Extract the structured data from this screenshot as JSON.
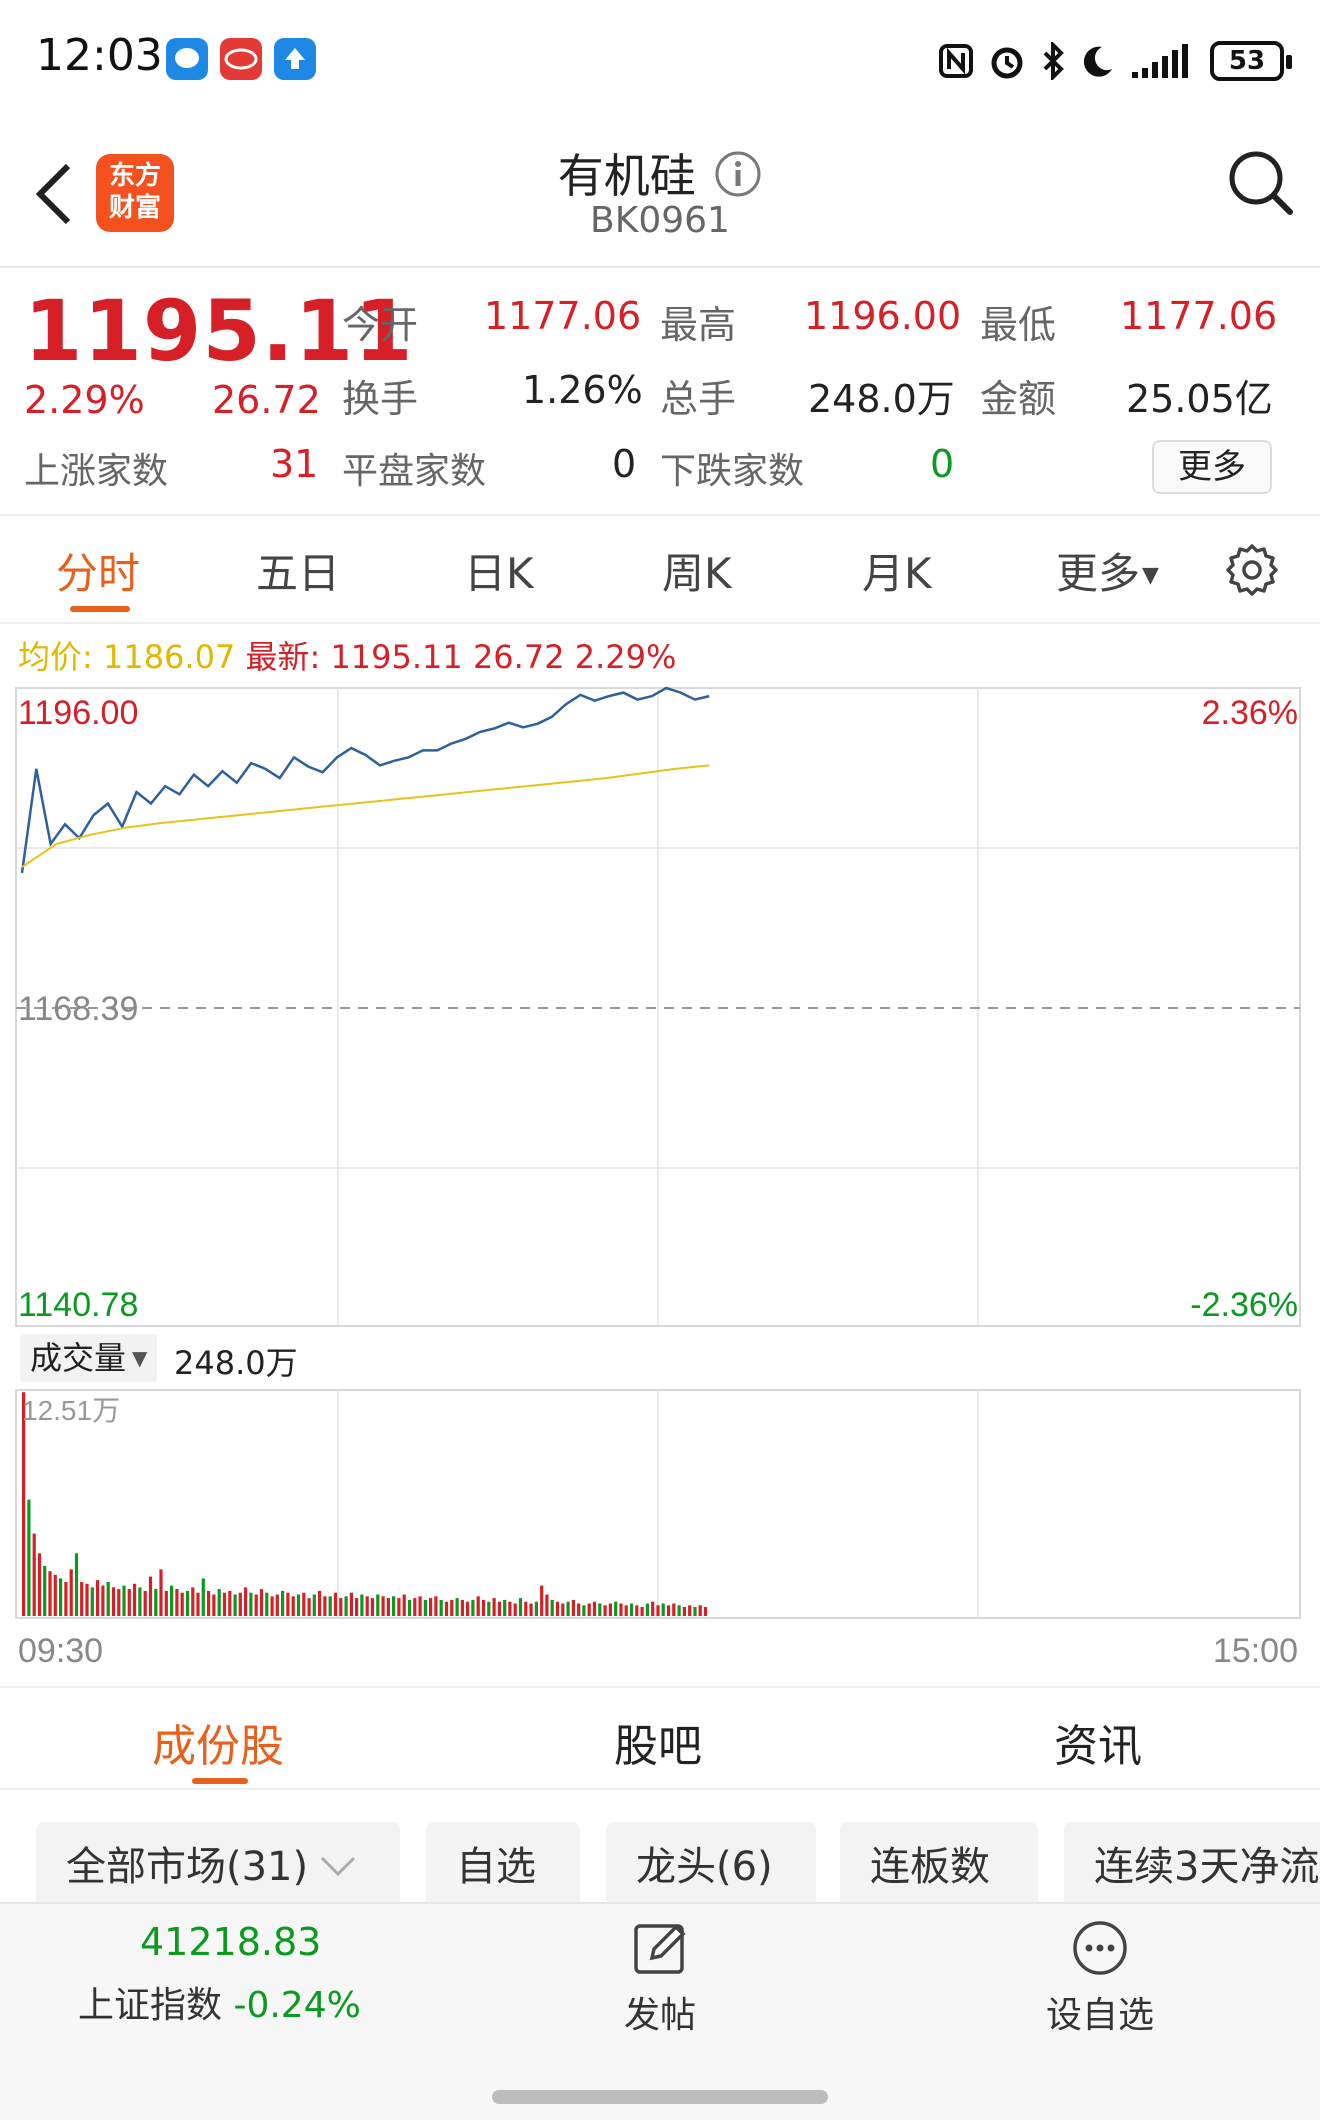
{
  "status_bar": {
    "time": "12:03",
    "battery": "53",
    "icons": [
      "message-icon",
      "byd-icon",
      "upload-icon",
      "nfc-icon",
      "alarm-icon",
      "bluetooth-icon",
      "moon-icon",
      "signal-icon",
      "battery-icon"
    ]
  },
  "header": {
    "logo_line1": "东方",
    "logo_line2": "财富",
    "title": "有机硅",
    "code": "BK0961",
    "icons": [
      "back-icon",
      "info-icon",
      "search-icon"
    ]
  },
  "quote": {
    "price": "1195.11",
    "change_pct": "2.29%",
    "change": "26.72",
    "open_label": "今开",
    "open": "1177.06",
    "high_label": "最高",
    "high": "1196.00",
    "low_label": "最低",
    "low": "1177.06",
    "turnover_label": "换手",
    "turnover": "1.26%",
    "volume_label": "总手",
    "volume": "248.0万",
    "amount_label": "金额",
    "amount": "25.05亿",
    "up_label": "上涨家数",
    "up_count": "31",
    "flat_label": "平盘家数",
    "flat_count": "0",
    "down_label": "下跌家数",
    "down_count": "0",
    "more": "更多"
  },
  "period_tabs": [
    "分时",
    "五日",
    "日K",
    "周K",
    "月K",
    "更多"
  ],
  "period_active": 0,
  "chart_info": {
    "avg_label": "均价:",
    "avg_value": "1186.07",
    "latest_label": "最新:",
    "latest_value": "1195.11",
    "latest_change": "26.72",
    "latest_pct": "2.29%"
  },
  "chart_labels": {
    "price_top": "1196.00",
    "price_mid": "1168.39",
    "price_bottom": "1140.78",
    "pct_top": "2.36%",
    "pct_bottom": "-2.36%",
    "time_start": "09:30",
    "time_end": "15:00",
    "vol_max": "12.51万"
  },
  "colors": {
    "up": "#d61f26",
    "down": "#0a9a1f",
    "accent": "#e8601c",
    "price_line": "#2e5f9e",
    "avg_line": "#e6c21a"
  },
  "chart_data": {
    "type": "line",
    "title": "",
    "xlabel": "",
    "ylabel": "",
    "x_range": [
      "09:30",
      "15:00"
    ],
    "ylim": [
      1140.78,
      1196.0
    ],
    "reference": 1168.39,
    "series": [
      {
        "values": [
          1180.0,
          1189.0,
          1182.5,
          1184.2,
          1183.0,
          1185.0,
          1186.0,
          1184.0,
          1187.0,
          1186.0,
          1187.5,
          1186.8,
          1188.5,
          1187.5,
          1188.8,
          1187.8,
          1189.5,
          1189.0,
          1188.2,
          1190.0,
          1189.2,
          1188.7,
          1190.0,
          1190.8,
          1190.2,
          1189.3,
          1189.7,
          1190.0,
          1190.6,
          1190.6,
          1191.2,
          1191.6,
          1192.2,
          1192.5,
          1193.0,
          1192.6,
          1192.9,
          1193.5,
          1194.6,
          1195.4,
          1194.9,
          1195.3,
          1195.6,
          1195.0,
          1195.3,
          1196.0,
          1195.6,
          1195.0,
          1195.3
        ]
      },
      {
        "values": [
          1180.5,
          1182.5,
          1183.3,
          1183.9,
          1184.3,
          1184.6,
          1184.9,
          1185.2,
          1185.5,
          1185.8,
          1186.1,
          1186.4,
          1186.7,
          1187.0,
          1187.3,
          1187.6,
          1187.9,
          1188.2,
          1188.6,
          1189.0,
          1189.3
        ]
      }
    ],
    "volume": {
      "unit": "万",
      "max": 12.51,
      "values": [
        12.5,
        6.5,
        4.6,
        3.5,
        2.8,
        2.5,
        2.3,
        2.1,
        1.9,
        2.6,
        3.5,
        1.9,
        1.8,
        1.6,
        2.0,
        1.7,
        1.9,
        1.6,
        1.5,
        1.7,
        1.5,
        1.8,
        1.6,
        1.4,
        2.2,
        1.5,
        2.6,
        1.4,
        1.7,
        1.5,
        1.3,
        1.4,
        1.6,
        1.3,
        2.1,
        1.4,
        1.2,
        1.5,
        1.3,
        1.4,
        1.2,
        1.3,
        1.6,
        1.3,
        1.2,
        1.5,
        1.3,
        1.1,
        1.2,
        1.4,
        1.3,
        1.1,
        1.2,
        1.3,
        1.0,
        1.2,
        1.4,
        1.1,
        1.1,
        1.3,
        1.0,
        1.1,
        1.3,
        1.0,
        1.2,
        1.1,
        1.0,
        1.2,
        1.1,
        1.0,
        1.1,
        1.0,
        1.2,
        0.9,
        1.0,
        1.1,
        0.9,
        1.0,
        1.1,
        0.9,
        0.8,
        0.9,
        1.0,
        0.9,
        0.8,
        0.9,
        1.1,
        0.9,
        0.8,
        1.0,
        0.8,
        0.9,
        0.8,
        0.7,
        1.0,
        0.8,
        0.7,
        0.8,
        1.7,
        1.2,
        0.9,
        0.8,
        0.7,
        0.8,
        0.9,
        0.7,
        0.6,
        0.7,
        0.8,
        0.7,
        0.6,
        0.7,
        0.8,
        0.7,
        0.6,
        0.7,
        0.6,
        0.5,
        0.7,
        0.8,
        0.6,
        0.7,
        0.6,
        0.7,
        0.6,
        0.5,
        0.6,
        0.5,
        0.6,
        0.5,
        0.6,
        0.5,
        0.4,
        0.5,
        0.6,
        0.5,
        0.4,
        0.5,
        0.4,
        0.5,
        0.4,
        0.5,
        0.4,
        0.5,
        0.4,
        0.5,
        0.4,
        0.5,
        0.4,
        0.5,
        0.4,
        0.5,
        0.4,
        0.5,
        0.4,
        0.5,
        0.4,
        0.5,
        0.4,
        0.5,
        0.4,
        0.5,
        0.4,
        0.5,
        0.4,
        0.5,
        0.4,
        0.5,
        0.4,
        0.5,
        0.4,
        0.5,
        0.4,
        0.5,
        0.4,
        0.5,
        0.4,
        0.5,
        0.4,
        0.5,
        0.4,
        0.5,
        0.4,
        0.5,
        0.4,
        0.5,
        0.4,
        0.5,
        0.4,
        0.5,
        0.4,
        0.5,
        0.4,
        0.5,
        0.4,
        0.5,
        0.4,
        0.5,
        0.4,
        0.5,
        0.4,
        0.5,
        0.4,
        0.5,
        0.4,
        0.5,
        0.4,
        0.5,
        0.4,
        0.5,
        0.4,
        0.5,
        0.4,
        0.5,
        0.4,
        0.5,
        0.4,
        0.5,
        0.4,
        0.5,
        0.4,
        0.5,
        0.4,
        0.5,
        0.4,
        0.5,
        0.4,
        0.5,
        0.4,
        0.5,
        0.4,
        0.5,
        0.4,
        0.5,
        0.4,
        0.5,
        0.4,
        0.5,
        0.4,
        0.5,
        0.4,
        0.5,
        0.4,
        0.5,
        0.4,
        0.5,
        0.4,
        0.5,
        0.4,
        0.5,
        0.4,
        0.5,
        0.4,
        0.5,
        0.4,
        0.5,
        0.4,
        0.5,
        0.4,
        0.5,
        0.4,
        0.5,
        0.4,
        0.5,
        0.4,
        0.5,
        0.4,
        0.5,
        0.4,
        0.5,
        0.4,
        0.5,
        0.4,
        0.5,
        0.4,
        0.5,
        0.4,
        0.5,
        0.4,
        0.5,
        0.4,
        0.5,
        0.4,
        0.5,
        0.4,
        0.5,
        0.4,
        0.5,
        0.4,
        0.5,
        0.4,
        0.5,
        0.4,
        0.5,
        0.4,
        0.5,
        0.4,
        0.5,
        0.4,
        0.5,
        0.4,
        0.5,
        0.4,
        0.5,
        0.4,
        0.5,
        0.4,
        0.5
      ],
      "colors": "alternating-up-down"
    }
  },
  "volume_header": {
    "label": "成交量",
    "value": "248.0万"
  },
  "content_tabs": [
    "成份股",
    "股吧",
    "资讯"
  ],
  "content_active": 0,
  "filters": [
    "全部市场(31)",
    "自选",
    "龙头(6)",
    "连板数",
    "连续3天净流"
  ],
  "bottom_bar": {
    "index_value": "41218.83",
    "index_name": "上证指数",
    "index_change": "-0.24%",
    "post_label": "发帖",
    "watch_label": "设自选",
    "icons": [
      "edit-icon",
      "more-icon"
    ]
  }
}
